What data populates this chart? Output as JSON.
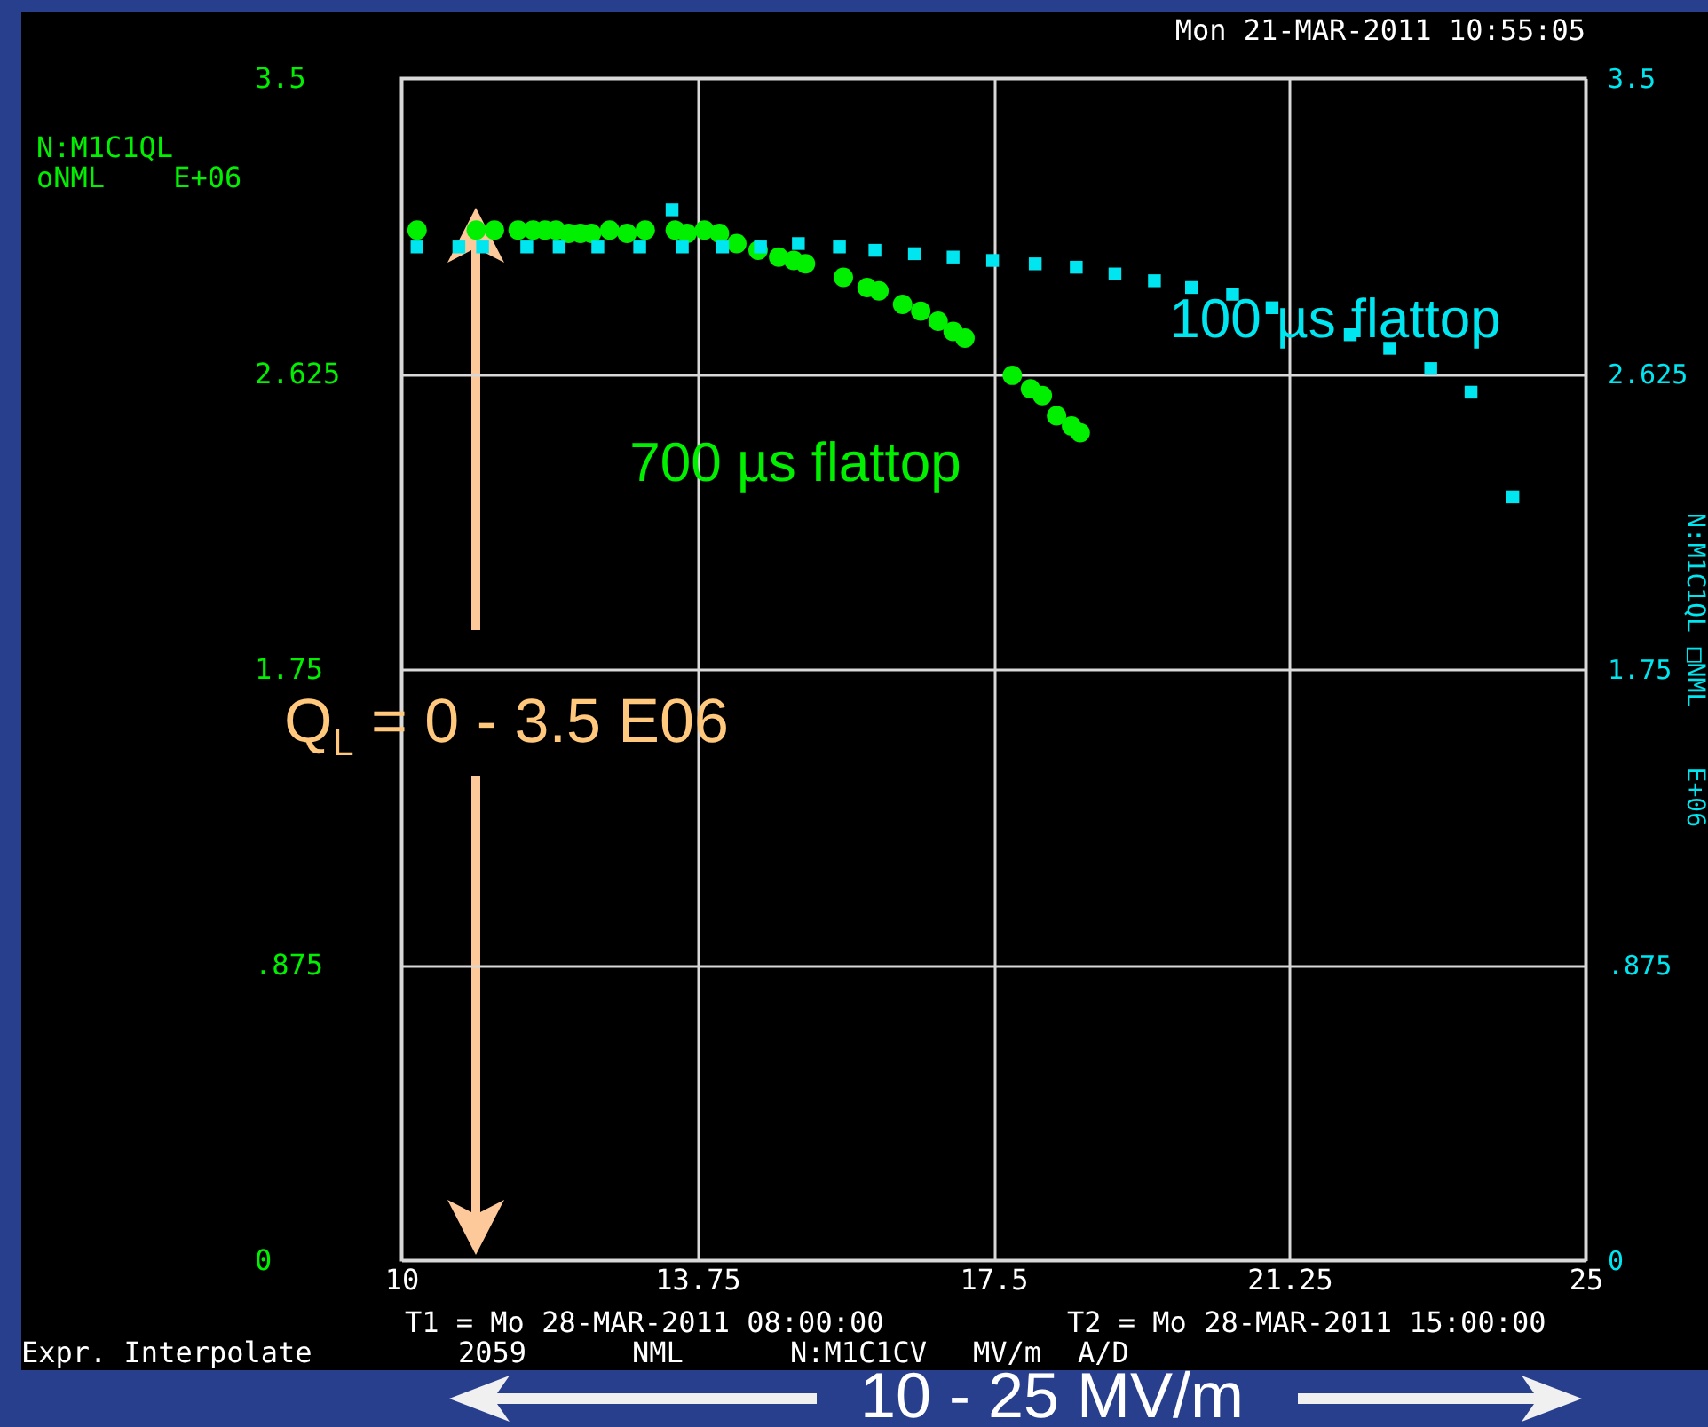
{
  "chart_data": {
    "type": "scatter",
    "xlabel": "10 - 25 MV/m",
    "ylabel": "N:M1C1QL\noNML    E+06",
    "y2label": "N:M1C1QL\n□NML    E+06",
    "annotations": [
      "Mon 21-MAR-2011 10:55:05",
      "T1 = Mo 28-MAR-2011 08:00:00",
      "T2 = Mo 28-MAR-2011 15:00:00",
      "Expr. Interpolate",
      "2059",
      "NML",
      "N:M1C1CV",
      "MV/m",
      "A/D",
      "Q$_{L}$ = 0 - 3.5 E06"
    ],
    "xlim": [
      10,
      25
    ],
    "xticks": [
      10,
      13.75,
      17.5,
      21.25,
      25
    ],
    "ylim": [
      0,
      3.5
    ],
    "yticks": [
      0,
      {
        "value": 0.875,
        "label": ".875"
      },
      1.75,
      2.625,
      3.5
    ],
    "y2lim": [
      0,
      3.5
    ],
    "y2ticks": [
      0,
      {
        "value": 0.875,
        "label": ".875"
      },
      1.75,
      2.625,
      3.5
    ],
    "grid": true,
    "series": [
      {
        "name": "700 µs flattop",
        "color": "#00f000",
        "marker": "circle",
        "x": [
          10.2,
          10.95,
          11.18,
          11.48,
          11.67,
          11.82,
          11.96,
          12.12,
          12.27,
          12.41,
          12.64,
          12.86,
          13.09,
          13.47,
          13.62,
          13.84,
          14.03,
          14.25,
          14.52,
          14.78,
          14.97,
          15.12,
          15.6,
          15.9,
          16.05,
          16.35,
          16.58,
          16.8,
          16.99,
          17.14,
          17.74,
          17.97,
          18.12,
          18.3,
          18.49,
          18.6
        ],
        "values": [
          3.05,
          3.05,
          3.05,
          3.05,
          3.05,
          3.05,
          3.05,
          3.04,
          3.04,
          3.04,
          3.05,
          3.04,
          3.05,
          3.05,
          3.04,
          3.05,
          3.04,
          3.01,
          2.99,
          2.97,
          2.96,
          2.95,
          2.91,
          2.88,
          2.87,
          2.83,
          2.81,
          2.78,
          2.75,
          2.73,
          2.62,
          2.58,
          2.56,
          2.5,
          2.47,
          2.45
        ]
      },
      {
        "name": "100 µs flattop",
        "color": "#00e6f0",
        "marker": "square",
        "axis": "y2",
        "x": [
          10.2,
          10.73,
          11.03,
          11.59,
          12.0,
          12.49,
          13.02,
          13.43,
          13.56,
          14.07,
          14.55,
          15.03,
          15.55,
          16.0,
          16.5,
          16.99,
          17.49,
          18.03,
          18.55,
          19.04,
          19.54,
          20.01,
          20.53,
          21.03,
          22.02,
          22.52,
          23.04,
          23.55,
          24.08
        ],
        "values": [
          3.0,
          3.0,
          3.0,
          3.0,
          3.0,
          3.0,
          3.0,
          3.11,
          3.0,
          3.0,
          3.0,
          3.01,
          3.0,
          2.99,
          2.98,
          2.97,
          2.96,
          2.95,
          2.94,
          2.92,
          2.9,
          2.88,
          2.86,
          2.82,
          2.74,
          2.7,
          2.64,
          2.57,
          2.26
        ]
      }
    ]
  }
}
